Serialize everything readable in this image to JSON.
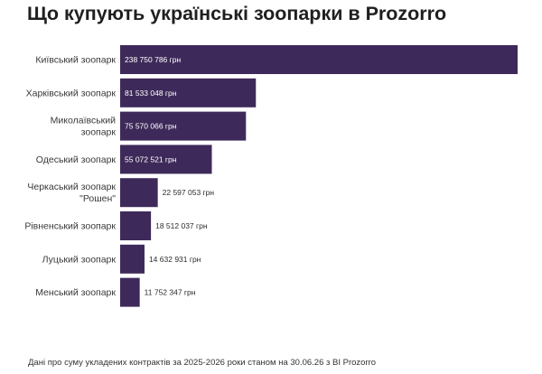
{
  "title": "Що купують українські зоопарки в Prozorro",
  "footnote": "Дані про суму укладених контрактів за 2025-2026 роки станом на 30.06.26 з BI Prozorro",
  "colors": {
    "bar": "#3e2a5a",
    "label_inside": "#ffffff",
    "label_outside": "#2b2b2b",
    "category_text": "#3a3a3a"
  },
  "chart_data": {
    "type": "bar",
    "orientation": "horizontal",
    "title": "Що купують українські зоопарки в Prozorro",
    "xlabel": "",
    "ylabel": "",
    "grid": false,
    "legend": "none",
    "value_unit": "грн",
    "xlim": [
      0,
      238750786
    ],
    "categories": [
      [
        "Київський зоопарк"
      ],
      [
        "Харківський зоопарк"
      ],
      [
        "Миколаївський",
        "зоопарк"
      ],
      [
        "Одеський зоопарк"
      ],
      [
        "Черкаський зоопарк",
        "\"Рошен\""
      ],
      [
        "Рівненський зоопарк"
      ],
      [
        "Луцький зоопарк"
      ],
      [
        "Менський зоопарк"
      ]
    ],
    "values": [
      238750786,
      81533048,
      75570066,
      55072521,
      22597053,
      18512037,
      14632931,
      11752347
    ],
    "value_labels": [
      "238 750 786 грн",
      "81 533 048 грн",
      "75 570 066 грн",
      "55 072 521 грн",
      "22 597 053 грн",
      "18 512 037 грн",
      "14 632 931 грн",
      "11 752 347 грн"
    ],
    "label_inside": [
      true,
      true,
      true,
      true,
      false,
      false,
      false,
      false
    ]
  }
}
